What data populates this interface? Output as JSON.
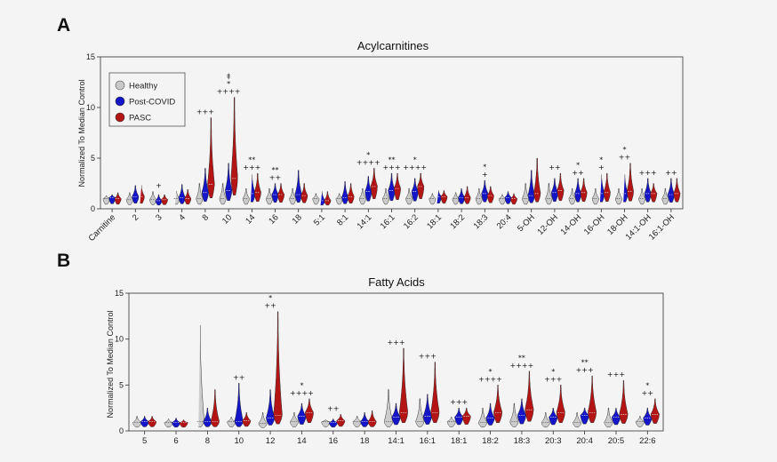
{
  "panels": [
    {
      "letter": "A"
    },
    {
      "letter": "B"
    }
  ],
  "legend": [
    {
      "name": "Healthy",
      "color": "#c8c8c8"
    },
    {
      "name": "Post-COVID",
      "color": "#1414c8"
    },
    {
      "name": "PASC",
      "color": "#b41414"
    }
  ],
  "chart_data": [
    {
      "type": "violin",
      "title": "Acylcarnitines",
      "ylabel": "Normalized To Median Control",
      "xlabel": "",
      "ylim": [
        0,
        15
      ],
      "yticks": [
        0,
        5,
        10,
        15
      ],
      "grid": false,
      "legend_position": "top-left",
      "series": [
        "Healthy",
        "Post-COVID",
        "PASC"
      ],
      "categories": [
        "Carnitine",
        "2",
        "3",
        "4",
        "8",
        "10",
        "14",
        "16",
        "18",
        "5:1",
        "8:1",
        "14:1",
        "16:1",
        "16:2",
        "18:1",
        "18:2",
        "18:3",
        "20:4",
        "5-OH",
        "12-OH",
        "14-OH",
        "16-OH",
        "18-OH",
        "14:1-OH",
        "16:1-OH"
      ],
      "annotations": [
        "",
        "",
        "+",
        "",
        "+++",
        "‡\n*\n++++",
        "**\n+++",
        "**\n++",
        "",
        "",
        "",
        "*\n++++",
        "**\n+++",
        "*\n++++",
        "",
        "",
        "*\n+",
        "",
        "",
        "++",
        "*\n++",
        "*\n+",
        "*\n++",
        "+++",
        "++"
      ],
      "max": [
        [
          1.3,
          1.6,
          1.7,
          1.8,
          2.5,
          2.5,
          2.0,
          2.0,
          2.0,
          1.5,
          1.5,
          2.0,
          2.0,
          2.0,
          1.5,
          1.6,
          2.0,
          1.4,
          2.5,
          2.5,
          2.0,
          2.0,
          2.0,
          2.0,
          2.0
        ],
        [
          1.4,
          2.3,
          1.4,
          2.4,
          4.0,
          4.5,
          3.5,
          2.5,
          3.8,
          1.8,
          2.7,
          3.2,
          3.5,
          3.0,
          1.9,
          2.0,
          2.8,
          1.7,
          3.8,
          3.0,
          3.0,
          3.5,
          3.5,
          3.0,
          3.0
        ],
        [
          1.6,
          2.4,
          1.4,
          1.9,
          9.0,
          11.0,
          3.5,
          2.5,
          2.5,
          1.7,
          2.5,
          4.0,
          3.5,
          3.5,
          1.8,
          2.2,
          2.2,
          1.5,
          5.0,
          3.5,
          3.0,
          3.5,
          4.5,
          2.5,
          3.0
        ]
      ],
      "median": [
        [
          1.0,
          0.9,
          0.9,
          1.0,
          1.0,
          1.0,
          1.0,
          1.0,
          1.0,
          1.0,
          1.0,
          1.0,
          1.0,
          1.0,
          1.0,
          1.0,
          1.0,
          1.0,
          1.0,
          1.0,
          1.0,
          1.0,
          1.0,
          1.0,
          1.0
        ],
        [
          1.1,
          1.2,
          0.8,
          1.1,
          1.6,
          1.8,
          1.5,
          1.4,
          1.4,
          0.8,
          1.1,
          1.7,
          1.8,
          1.7,
          1.2,
          1.1,
          1.5,
          1.1,
          1.3,
          1.6,
          1.5,
          1.5,
          1.5,
          1.5,
          1.4
        ],
        [
          1.0,
          1.2,
          0.9,
          1.0,
          2.4,
          3.0,
          1.6,
          1.4,
          1.3,
          0.8,
          1.2,
          2.2,
          2.0,
          2.2,
          1.2,
          1.1,
          1.3,
          1.0,
          1.5,
          1.8,
          1.6,
          1.6,
          1.7,
          1.5,
          1.5
        ]
      ]
    },
    {
      "type": "violin",
      "title": "Fatty Acids",
      "ylabel": "Normalized To Median Control",
      "xlabel": "",
      "ylim": [
        0,
        15
      ],
      "yticks": [
        0,
        5,
        10,
        15
      ],
      "grid": false,
      "series": [
        "Healthy",
        "Post-COVID",
        "PASC"
      ],
      "categories": [
        "5",
        "6",
        "8",
        "10",
        "12",
        "14",
        "16",
        "18",
        "14:1",
        "16:1",
        "18:1",
        "18:2",
        "18:3",
        "20:3",
        "20:4",
        "20:5",
        "22:6"
      ],
      "annotations": [
        "",
        "",
        "",
        "++",
        "*\n++",
        "*\n++++",
        "++",
        "",
        "+++",
        "+++",
        "+++",
        "*\n++++",
        "**\n++++",
        "*\n+++",
        "**\n+++",
        "+++",
        "*\n++"
      ],
      "max": [
        [
          1.6,
          1.3,
          12.0,
          1.5,
          2.0,
          2.0,
          1.2,
          1.6,
          4.5,
          3.5,
          1.5,
          2.5,
          3.0,
          2.0,
          2.0,
          2.5,
          1.6
        ],
        [
          1.6,
          1.4,
          2.5,
          5.2,
          4.5,
          3.0,
          1.3,
          2.0,
          3.0,
          4.0,
          2.5,
          3.0,
          3.5,
          2.5,
          2.5,
          2.5,
          2.5
        ],
        [
          1.6,
          1.2,
          4.5,
          2.0,
          13.0,
          3.5,
          1.8,
          2.2,
          9.0,
          7.5,
          2.5,
          5.0,
          6.5,
          5.0,
          6.0,
          5.5,
          3.5
        ]
      ],
      "median": [
        [
          0.9,
          0.9,
          1.0,
          1.0,
          0.8,
          1.0,
          1.0,
          1.0,
          1.0,
          1.0,
          1.0,
          0.9,
          1.0,
          0.9,
          0.9,
          0.9,
          1.0
        ],
        [
          1.0,
          0.9,
          1.0,
          1.0,
          1.4,
          1.6,
          0.9,
          1.0,
          1.5,
          1.6,
          1.5,
          1.4,
          1.7,
          1.5,
          1.7,
          1.5,
          1.4
        ],
        [
          1.0,
          0.9,
          1.0,
          1.1,
          1.7,
          2.0,
          1.1,
          1.0,
          2.0,
          2.0,
          1.6,
          2.0,
          2.3,
          2.0,
          2.0,
          1.8,
          1.8
        ]
      ]
    }
  ]
}
